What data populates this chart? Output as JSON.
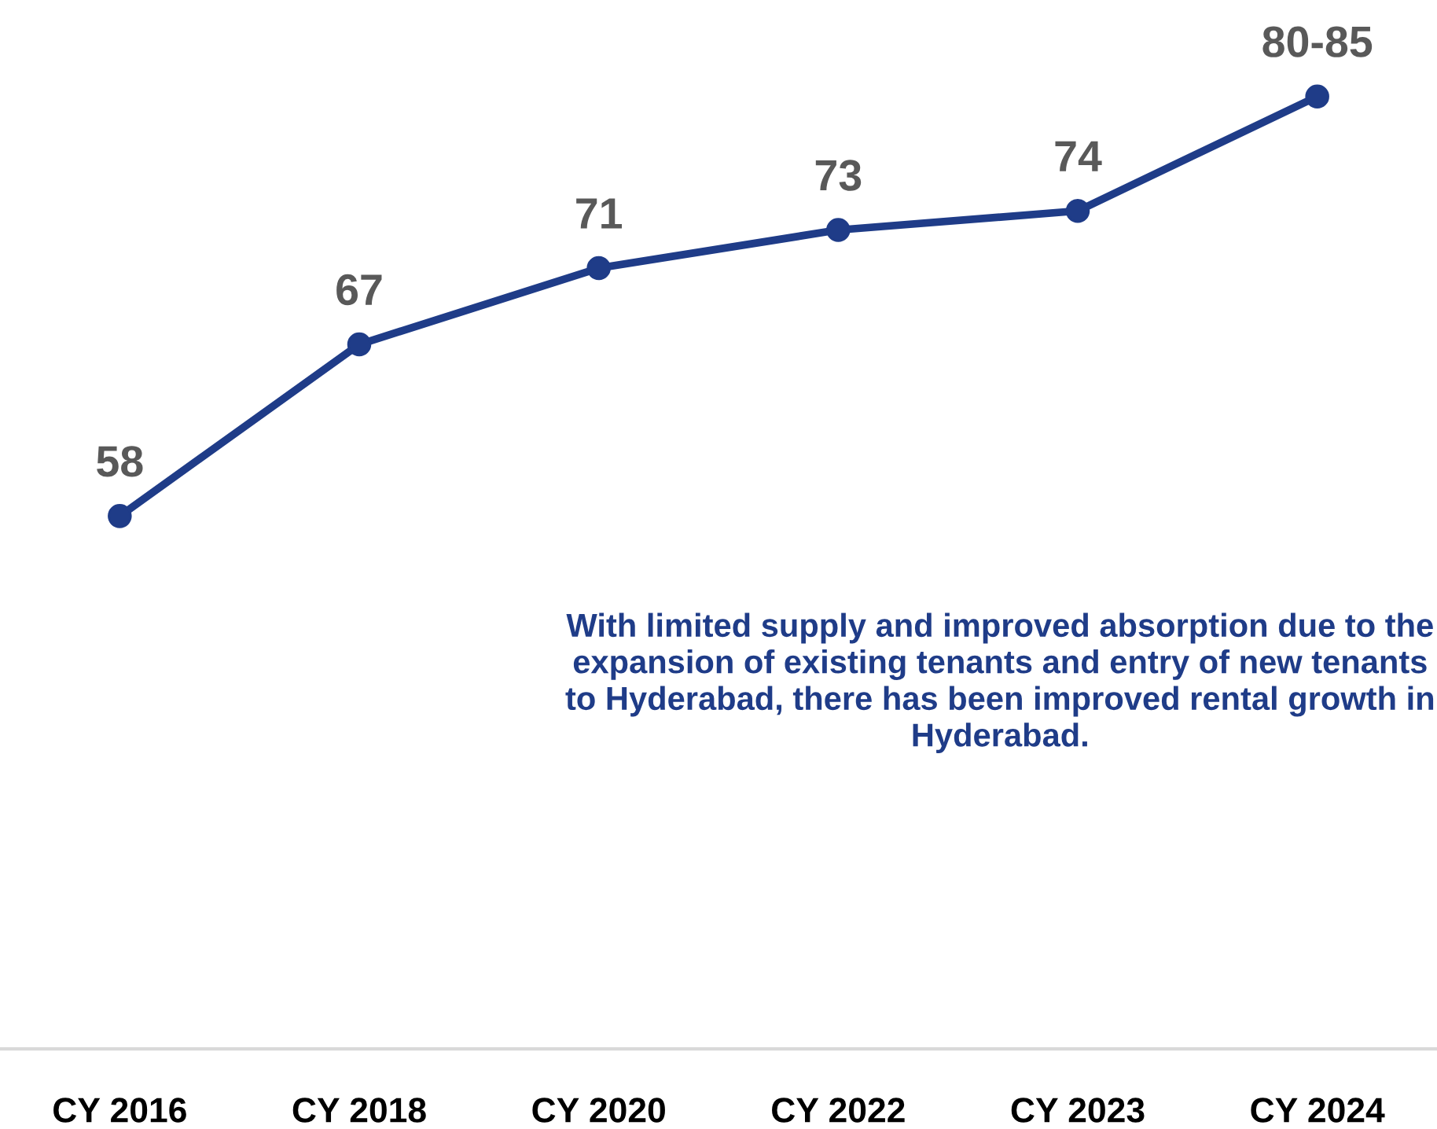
{
  "chart_data": {
    "type": "line",
    "categories": [
      "CY 2016",
      "CY 2018",
      "CY 2020",
      "CY 2022",
      "CY 2023",
      "CY 2024"
    ],
    "series": [
      {
        "color": "#1f3c88",
        "values": [
          58,
          67,
          71,
          73,
          74,
          80
        ],
        "value_labels": [
          "58",
          "67",
          "71",
          "73",
          "74",
          "80-85"
        ]
      }
    ],
    "tick_labels": "x",
    "marker": "circle",
    "line_style": "solid",
    "grid": false,
    "annotations": [
      "With limited supply and improved absorption due to the expansion of existing tenants and entry of new tenants to Hyderabad, there has been improved rental growth in Hyderabad."
    ]
  }
}
